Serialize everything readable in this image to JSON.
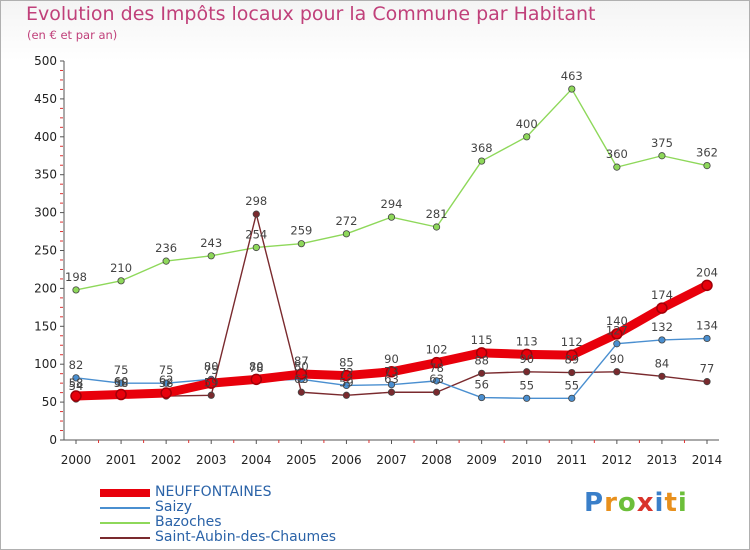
{
  "header": {
    "title": "Evolution des Impôts locaux pour la Commune par Habitant",
    "subtitle": "(en € et par an)"
  },
  "brand": {
    "name": "Proxiti",
    "letters": [
      "P",
      "r",
      "o",
      "x",
      "i",
      "t",
      "i"
    ]
  },
  "chart_data": {
    "type": "line",
    "title": "Evolution des Impôts locaux pour la Commune par Habitant",
    "subtitle": "(en € et par an)",
    "x": [
      "2000",
      "2001",
      "2002",
      "2003",
      "2004",
      "2005",
      "2006",
      "2007",
      "2008",
      "2009",
      "2010",
      "2011",
      "2012",
      "2013",
      "2014"
    ],
    "ylim": [
      0,
      500
    ],
    "yticks": [
      "0",
      "50",
      "100",
      "150",
      "200",
      "250",
      "300",
      "350",
      "400",
      "450",
      "500"
    ],
    "grid": false,
    "legend_position": "bottom-left",
    "series": [
      {
        "name": "NEUFFONTAINES",
        "color": "#e8000b",
        "values": [
          58,
          60,
          62,
          75,
          80,
          87,
          85,
          90,
          102,
          115,
          113,
          112,
          140,
          174,
          204
        ],
        "labels": [
          "58",
          "60",
          "62",
          "75",
          "80",
          "87",
          "85",
          "90",
          "102",
          "115",
          "113",
          "112",
          "140",
          "174",
          "204"
        ]
      },
      {
        "name": "Saizy",
        "color": "#4a8fd0",
        "values": [
          82,
          75,
          75,
          80,
          78,
          80,
          72,
          73,
          78,
          56,
          55,
          55,
          127,
          132,
          134
        ],
        "labels": [
          "82",
          "75",
          "75",
          "80",
          "78",
          "80",
          "72",
          "73",
          "78",
          "56",
          "55",
          "55",
          "127",
          "132",
          "134"
        ]
      },
      {
        "name": "Bazoches",
        "color": "#8ed85a",
        "values": [
          198,
          210,
          236,
          243,
          254,
          259,
          272,
          294,
          281,
          368,
          400,
          463,
          360,
          375,
          362
        ],
        "labels": [
          "198",
          "210",
          "236",
          "243",
          "254",
          "259",
          "272",
          "294",
          "281",
          "368",
          "400",
          "463",
          "360",
          "375",
          "362"
        ]
      },
      {
        "name": "Saint-Aubin-des-Chaumes",
        "color": "#7a2a2e",
        "values": [
          54,
          58,
          58,
          59,
          298,
          63,
          59,
          63,
          63,
          88,
          90,
          89,
          90,
          84,
          77
        ],
        "labels": [
          "54",
          "58",
          "58",
          "59",
          "298",
          "63",
          "59",
          "63",
          "63",
          "88",
          "90",
          "89",
          "90",
          "84",
          "77"
        ]
      }
    ]
  }
}
